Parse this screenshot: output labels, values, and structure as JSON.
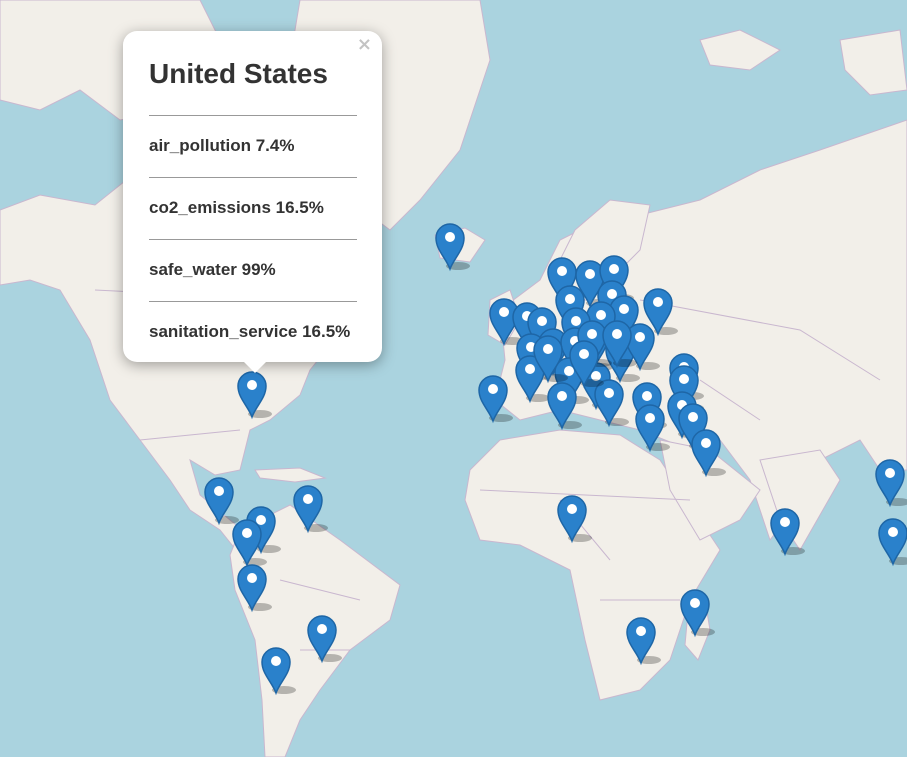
{
  "map": {
    "marker_color": "#2a81cb",
    "water_color": "#aad3df",
    "land_color": "#f2efe9",
    "border_color": "#c9b7cf"
  },
  "popup": {
    "close_icon": "×",
    "title": "United States",
    "stats": [
      "air_pollution 7.4%",
      "co2_emissions 16.5%",
      "safe_water 99%",
      "sanitation_service 16.5%"
    ]
  }
}
